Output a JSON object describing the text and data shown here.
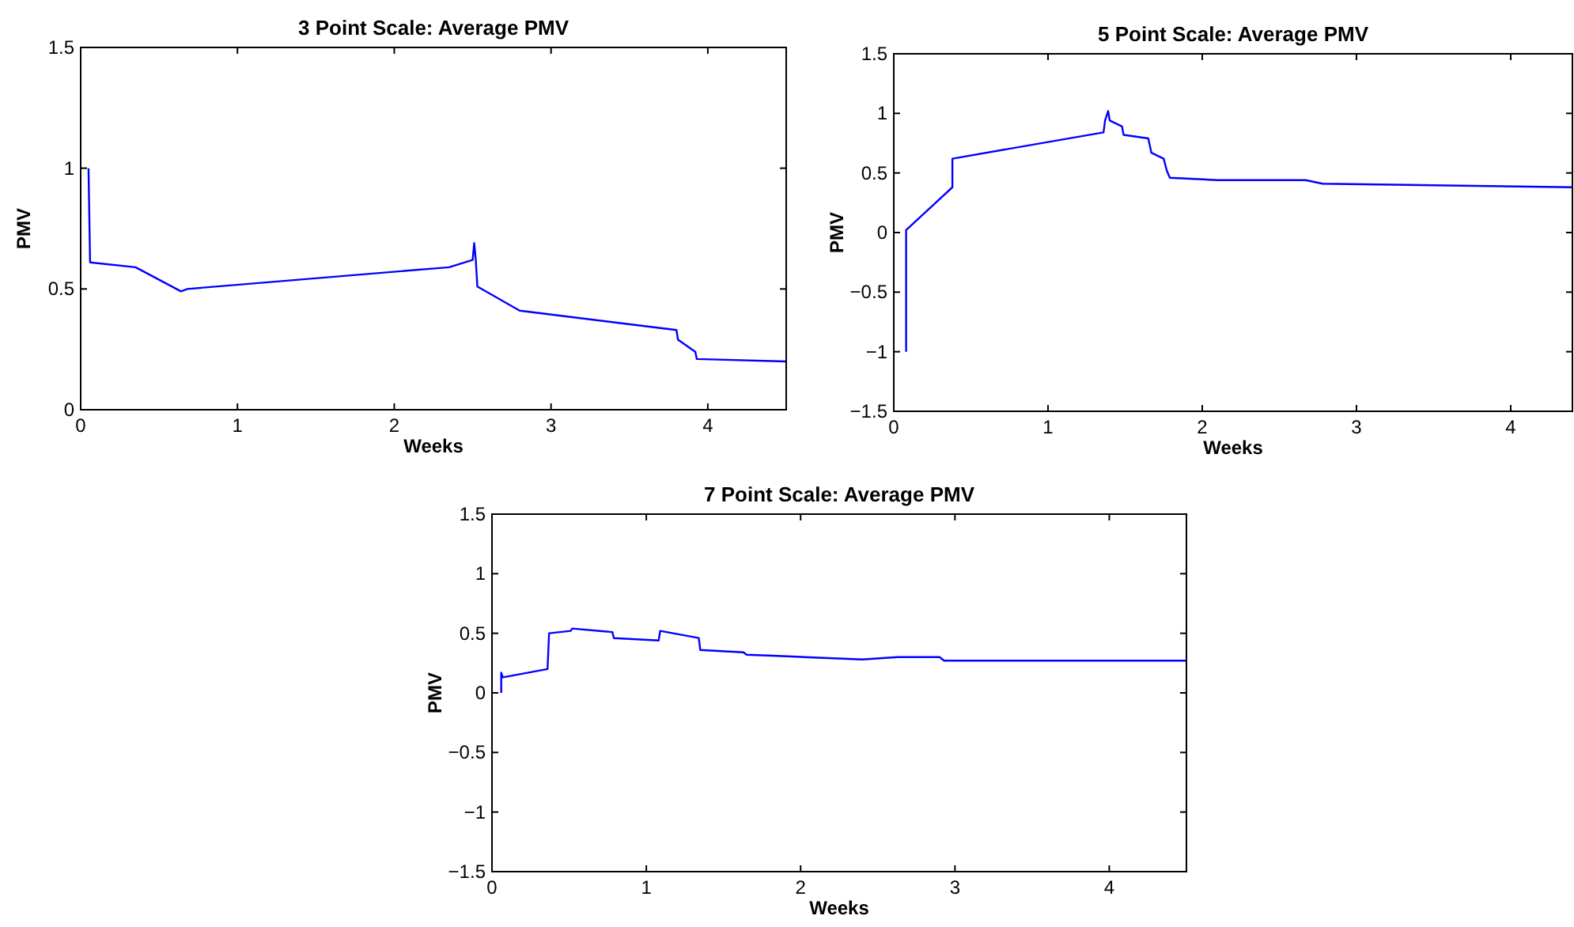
{
  "chart_data": [
    {
      "type": "line",
      "title": "3 Point Scale: Average PMV",
      "xlabel": "Weeks",
      "ylabel": "PMV",
      "xlim": [
        0,
        4.5
      ],
      "ylim": [
        0,
        1.5
      ],
      "xticks": [
        0,
        1,
        2,
        3,
        4
      ],
      "yticks": [
        0,
        0.5,
        1,
        1.5
      ],
      "grid": false,
      "series": [
        {
          "color": "#0000ff",
          "x": [
            0.05,
            0.06,
            0.35,
            0.64,
            0.68,
            2.35,
            2.5,
            2.51,
            2.52,
            2.53,
            2.8,
            3.8,
            3.81,
            3.92,
            3.93,
            4.5
          ],
          "values": [
            1.0,
            0.61,
            0.59,
            0.49,
            0.5,
            0.59,
            0.62,
            0.69,
            0.62,
            0.51,
            0.41,
            0.33,
            0.29,
            0.24,
            0.21,
            0.2
          ]
        }
      ]
    },
    {
      "type": "line",
      "title": "5 Point Scale: Average PMV",
      "xlabel": "Weeks",
      "ylabel": "PMV",
      "xlim": [
        0,
        4.4
      ],
      "ylim": [
        -1.5,
        1.5
      ],
      "xticks": [
        0,
        1,
        2,
        3,
        4
      ],
      "yticks": [
        -1.5,
        -1,
        -0.5,
        0,
        0.5,
        1,
        1.5
      ],
      "grid": false,
      "series": [
        {
          "color": "#0000ff",
          "x": [
            0.08,
            0.08,
            0.38,
            0.38,
            1.36,
            1.37,
            1.39,
            1.4,
            1.48,
            1.49,
            1.65,
            1.67,
            1.75,
            1.77,
            1.79,
            2.1,
            2.67,
            2.78,
            4.4
          ],
          "values": [
            -1.0,
            0.02,
            0.38,
            0.62,
            0.84,
            0.94,
            1.02,
            0.94,
            0.89,
            0.82,
            0.79,
            0.67,
            0.62,
            0.52,
            0.46,
            0.44,
            0.44,
            0.41,
            0.38
          ]
        }
      ]
    },
    {
      "type": "line",
      "title": "7 Point Scale: Average PMV",
      "xlabel": "Weeks",
      "ylabel": "PMV",
      "xlim": [
        0,
        4.5
      ],
      "ylim": [
        -1.5,
        1.5
      ],
      "xticks": [
        0,
        1,
        2,
        3,
        4
      ],
      "yticks": [
        -1.5,
        -1,
        -0.5,
        0,
        0.5,
        1,
        1.5
      ],
      "grid": false,
      "series": [
        {
          "color": "#0000ff",
          "x": [
            0.06,
            0.06,
            0.07,
            0.36,
            0.37,
            0.51,
            0.52,
            0.78,
            0.79,
            1.08,
            1.09,
            1.34,
            1.35,
            1.63,
            1.65,
            1.85,
            2.4,
            2.63,
            2.9,
            2.93,
            4.5
          ],
          "values": [
            0.0,
            0.17,
            0.13,
            0.2,
            0.5,
            0.52,
            0.54,
            0.51,
            0.46,
            0.44,
            0.52,
            0.46,
            0.36,
            0.34,
            0.32,
            0.31,
            0.28,
            0.3,
            0.3,
            0.27,
            0.27
          ]
        }
      ]
    }
  ]
}
